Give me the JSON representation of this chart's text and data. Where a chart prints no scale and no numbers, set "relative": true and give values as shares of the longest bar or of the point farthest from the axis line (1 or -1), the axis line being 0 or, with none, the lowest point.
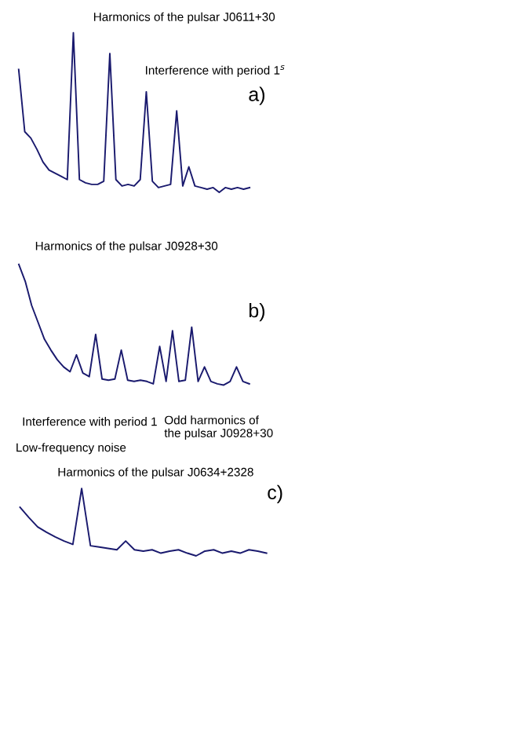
{
  "chart_data": [
    {
      "type": "line",
      "relative": true,
      "title": "a)",
      "categories": [
        null,
        null,
        null,
        null,
        null,
        null,
        null,
        null,
        null,
        null,
        null,
        null,
        null,
        null,
        null,
        null,
        null,
        null,
        null,
        null,
        null,
        null,
        null,
        null,
        null,
        null,
        null,
        null,
        null,
        null,
        null,
        null,
        null,
        null,
        null,
        null,
        null,
        null,
        null
      ],
      "series": [
        {
          "color": "#1a1a6e",
          "values": [
            0.77,
            0.38,
            0.34,
            0.27,
            0.19,
            0.14,
            0.12,
            0.1,
            0.08,
            1.0,
            0.08,
            0.06,
            0.05,
            0.05,
            0.07,
            0.87,
            0.08,
            0.04,
            0.05,
            0.04,
            0.08,
            0.63,
            0.07,
            0.03,
            0.04,
            0.05,
            0.51,
            0.04,
            0.16,
            0.04,
            0.03,
            0.02,
            0.03,
            0.0,
            0.03,
            0.02,
            0.03,
            0.02,
            0.03
          ]
        }
      ],
      "annotations": [
        "Harmonics of the pulsar J0611+30",
        "Interference with period 1$^{s}$"
      ]
    },
    {
      "type": "line",
      "relative": true,
      "title": "b)",
      "categories": [
        null,
        null,
        null,
        null,
        null,
        null,
        null,
        null,
        null,
        null,
        null,
        null,
        null,
        null,
        null,
        null,
        null,
        null,
        null,
        null,
        null,
        null,
        null,
        null,
        null,
        null,
        null,
        null,
        null,
        null,
        null,
        null,
        null,
        null,
        null,
        null,
        null
      ],
      "series": [
        {
          "color": "#1a1a6e",
          "values": [
            1.0,
            0.86,
            0.66,
            0.52,
            0.38,
            0.29,
            0.21,
            0.15,
            0.11,
            0.25,
            0.1,
            0.07,
            0.42,
            0.05,
            0.04,
            0.05,
            0.29,
            0.04,
            0.03,
            0.04,
            0.03,
            0.01,
            0.32,
            0.03,
            0.45,
            0.03,
            0.04,
            0.48,
            0.03,
            0.15,
            0.03,
            0.01,
            0.0,
            0.03,
            0.15,
            0.03,
            0.01
          ]
        }
      ],
      "annotations": [
        "Harmonics of the pulsar J0928+30",
        "Interference with period 1",
        "Odd harmonics of\nthe pulsar J0928+30"
      ]
    },
    {
      "type": "line",
      "relative": true,
      "title": "c)",
      "categories": [
        null,
        null,
        null,
        null,
        null,
        null,
        null,
        null,
        null,
        null,
        null,
        null,
        null,
        null,
        null,
        null,
        null,
        null,
        null,
        null,
        null,
        null,
        null,
        null,
        null,
        null,
        null,
        null,
        null
      ],
      "series": [
        {
          "color": "#1a1a6e",
          "values": [
            0.72,
            0.57,
            0.43,
            0.35,
            0.28,
            0.22,
            0.17,
            1.0,
            0.15,
            0.13,
            0.11,
            0.09,
            0.22,
            0.09,
            0.07,
            0.09,
            0.04,
            0.07,
            0.09,
            0.04,
            0.0,
            0.07,
            0.09,
            0.04,
            0.07,
            0.04,
            0.09,
            0.07,
            0.04
          ]
        }
      ],
      "annotations": [
        "Low-frequency noise",
        "Harmonics of the pulsar J0634+2328"
      ]
    }
  ]
}
